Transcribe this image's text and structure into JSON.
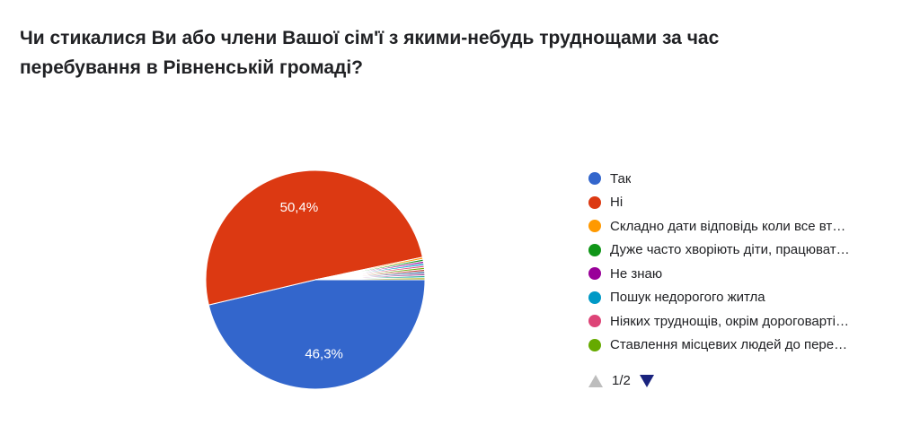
{
  "chart_data": {
    "type": "pie",
    "title": "Чи стикалися Ви або члени Вашої сім'ї з якими-небудь труднощами за час перебування в Рівненській громаді?",
    "slices": [
      {
        "label": "Так",
        "value": 46.3,
        "display": "46,3%",
        "color": "#3366cc"
      },
      {
        "label": "Ні",
        "value": 50.4,
        "display": "50,4%",
        "color": "#dc3912"
      },
      {
        "label": "Складно дати відповідь коли все вт…",
        "value": 0.3,
        "color": "#ff9900"
      },
      {
        "label": "Дуже часто хворіють діти, працюват…",
        "value": 0.3,
        "color": "#109618"
      },
      {
        "label": "Не знаю",
        "value": 0.3,
        "color": "#990099"
      },
      {
        "label": "Пошук недорогого житла",
        "value": 0.3,
        "color": "#0099c6"
      },
      {
        "label": "Ніяких труднощів, окрім дороговарті…",
        "value": 0.3,
        "color": "#dd4477"
      },
      {
        "label": "Ставлення місцевих людей до пере…",
        "value": 0.3,
        "color": "#66aa00"
      },
      {
        "value": 0.3,
        "color": "#b82e2e"
      },
      {
        "value": 0.3,
        "color": "#316395"
      },
      {
        "value": 0.3,
        "color": "#994499"
      },
      {
        "value": 0.3,
        "color": "#22aa99"
      },
      {
        "value": 0.3,
        "color": "#aaaa11"
      }
    ],
    "legend_position": "right"
  },
  "pager": {
    "text": "1/2"
  }
}
